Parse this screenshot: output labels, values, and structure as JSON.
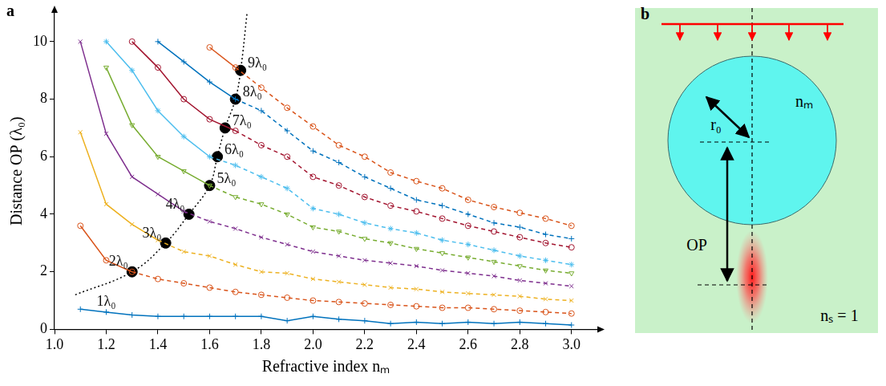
{
  "chart_data": {
    "type": "line",
    "panel_label": "a",
    "x_label": "Refractive index nₘ",
    "y_label": "Distance OP (λ₀)",
    "xlim": [
      1.0,
      3.1
    ],
    "ylim": [
      0,
      11
    ],
    "xticks": [
      {
        "value": 1.0,
        "label": "1.0"
      },
      1.2,
      1.4,
      1.6,
      1.8,
      {
        "value": 2.0,
        "label": "2.0"
      },
      2.2,
      2.4,
      2.6,
      2.8,
      {
        "value": 3.0,
        "label": "3.0"
      }
    ],
    "yticks": [
      0,
      2,
      4,
      6,
      8,
      10
    ],
    "grid": false,
    "series": [
      {
        "name": "1λ₀",
        "color": "#0072bd",
        "marker": "plus",
        "x": [
          1.1,
          1.2,
          1.3,
          1.4,
          1.5,
          1.6,
          1.7,
          1.8,
          1.9,
          2.0,
          2.1,
          2.2,
          2.3,
          2.4,
          2.5,
          2.6,
          2.7,
          2.8,
          2.9,
          3.0
        ],
        "values": [
          0.7,
          0.6,
          0.5,
          0.45,
          0.45,
          0.45,
          0.45,
          0.45,
          0.3,
          0.45,
          0.35,
          0.3,
          0.2,
          0.25,
          0.2,
          0.25,
          0.2,
          0.25,
          0.2,
          0.15
        ]
      },
      {
        "name": "2λ₀",
        "color": "#d95319",
        "marker": "circle",
        "x": [
          1.1,
          1.2,
          1.3,
          1.4,
          1.5,
          1.6,
          1.7,
          1.8,
          1.9,
          2.0,
          2.1,
          2.2,
          2.3,
          2.4,
          2.5,
          2.6,
          2.7,
          2.8,
          2.9,
          3.0
        ],
        "values": [
          3.6,
          2.4,
          2.0,
          1.75,
          1.6,
          1.45,
          1.3,
          1.2,
          1.1,
          1.0,
          0.95,
          0.9,
          0.85,
          0.8,
          0.75,
          0.75,
          0.7,
          0.65,
          0.6,
          0.55
        ]
      },
      {
        "name": "3λ₀",
        "color": "#edb120",
        "marker": "x",
        "x": [
          1.1,
          1.2,
          1.3,
          1.4,
          1.5,
          1.6,
          1.7,
          1.8,
          1.9,
          2.0,
          2.1,
          2.2,
          2.3,
          2.4,
          2.5,
          2.6,
          2.7,
          2.8,
          2.9,
          3.0
        ],
        "values": [
          6.85,
          4.35,
          3.65,
          3.1,
          2.7,
          2.55,
          2.25,
          2.0,
          1.95,
          1.75,
          1.65,
          1.55,
          1.45,
          1.4,
          1.3,
          1.25,
          1.2,
          1.15,
          1.05,
          1.0
        ]
      },
      {
        "name": "4λ₀",
        "color": "#7e2f8e",
        "marker": "x",
        "x": [
          1.1,
          1.2,
          1.3,
          1.4,
          1.5,
          1.6,
          1.7,
          1.8,
          1.9,
          2.0,
          2.1,
          2.2,
          2.3,
          2.4,
          2.5,
          2.6,
          2.7,
          2.8,
          2.9,
          3.0
        ],
        "values": [
          10.0,
          6.8,
          5.3,
          4.7,
          4.1,
          3.75,
          3.5,
          3.2,
          2.95,
          2.7,
          2.55,
          2.4,
          2.3,
          2.2,
          2.05,
          1.95,
          1.85,
          1.7,
          1.6,
          1.5
        ]
      },
      {
        "name": "5λ₀",
        "color": "#77ac30",
        "marker": "triangle_down",
        "x": [
          1.2,
          1.3,
          1.4,
          1.5,
          1.6,
          1.7,
          1.8,
          1.9,
          2.0,
          2.1,
          2.2,
          2.3,
          2.4,
          2.5,
          2.6,
          2.7,
          2.8,
          2.9,
          3.0
        ],
        "values": [
          9.1,
          7.1,
          6.0,
          5.5,
          5.0,
          4.6,
          4.35,
          4.0,
          3.55,
          3.4,
          3.15,
          3.0,
          2.8,
          2.65,
          2.5,
          2.35,
          2.2,
          2.05,
          1.95
        ]
      },
      {
        "name": "6λ₀",
        "color": "#4dbeee",
        "marker": "star",
        "x": [
          1.2,
          1.3,
          1.4,
          1.5,
          1.6,
          1.7,
          1.8,
          1.9,
          2.0,
          2.1,
          2.2,
          2.3,
          2.4,
          2.5,
          2.6,
          2.7,
          2.8,
          2.9,
          3.0
        ],
        "values": [
          10.0,
          9.0,
          7.6,
          6.7,
          6.0,
          5.7,
          5.3,
          4.9,
          4.2,
          4.0,
          3.7,
          3.5,
          3.35,
          3.1,
          2.95,
          2.75,
          2.55,
          2.4,
          2.25
        ]
      },
      {
        "name": "7λ₀",
        "color": "#a2142f",
        "marker": "circle",
        "x": [
          1.3,
          1.4,
          1.5,
          1.6,
          1.7,
          1.8,
          1.9,
          2.0,
          2.1,
          2.2,
          2.3,
          2.4,
          2.5,
          2.6,
          2.7,
          2.8,
          2.9,
          3.0
        ],
        "values": [
          10.0,
          9.1,
          8.0,
          7.3,
          6.9,
          6.4,
          6.0,
          5.3,
          5.0,
          4.6,
          4.3,
          4.1,
          3.85,
          3.6,
          3.4,
          3.2,
          3.0,
          2.85
        ]
      },
      {
        "name": "8λ₀",
        "color": "#0072bd",
        "marker": "plus",
        "x": [
          1.4,
          1.5,
          1.6,
          1.7,
          1.8,
          1.9,
          2.0,
          2.1,
          2.2,
          2.3,
          2.4,
          2.5,
          2.6,
          2.7,
          2.8,
          2.9,
          3.0
        ],
        "values": [
          10.0,
          9.3,
          8.6,
          8.0,
          7.6,
          6.9,
          6.2,
          5.8,
          5.3,
          4.9,
          4.5,
          4.3,
          4.0,
          3.7,
          3.55,
          3.3,
          3.15
        ]
      },
      {
        "name": "9λ₀",
        "color": "#d95319",
        "marker": "circle",
        "x": [
          1.6,
          1.7,
          1.8,
          1.9,
          2.0,
          2.1,
          2.2,
          2.3,
          2.4,
          2.5,
          2.6,
          2.7,
          2.8,
          2.9,
          3.0
        ],
        "values": [
          9.8,
          9.1,
          8.4,
          7.7,
          7.05,
          6.4,
          6.0,
          5.45,
          5.15,
          4.9,
          4.5,
          4.25,
          4.05,
          3.85,
          3.6
        ]
      }
    ],
    "thresholds": {
      "color": "#000000",
      "marker": "circle",
      "points": [
        {
          "series": "2λ₀",
          "x": 1.3,
          "y": 2.0
        },
        {
          "series": "3λ₀",
          "x": 1.43,
          "y": 3.0
        },
        {
          "series": "4λ₀",
          "x": 1.52,
          "y": 4.0
        },
        {
          "series": "5λ₀",
          "x": 1.6,
          "y": 5.0
        },
        {
          "series": "6λ₀",
          "x": 1.63,
          "y": 6.0
        },
        {
          "series": "7λ₀",
          "x": 1.66,
          "y": 7.0
        },
        {
          "series": "8λ₀",
          "x": 1.7,
          "y": 8.0
        },
        {
          "series": "9λ₀",
          "x": 1.72,
          "y": 9.0
        }
      ]
    },
    "guide": {
      "color": "#000000",
      "line_style": "dotted",
      "x": [
        1.08,
        1.3,
        1.43,
        1.52,
        1.6,
        1.63,
        1.66,
        1.7,
        1.72,
        1.745
      ],
      "values": [
        1.2,
        2.0,
        3.0,
        4.0,
        5.0,
        6.0,
        7.0,
        8.0,
        9.0,
        11.0
      ]
    }
  },
  "diagram": {
    "panel_label": "b",
    "labels": {
      "radius": "r₀",
      "sphere_index": "nₘ",
      "distance": "OP",
      "surrounding_index": "nₛ = 1"
    }
  }
}
